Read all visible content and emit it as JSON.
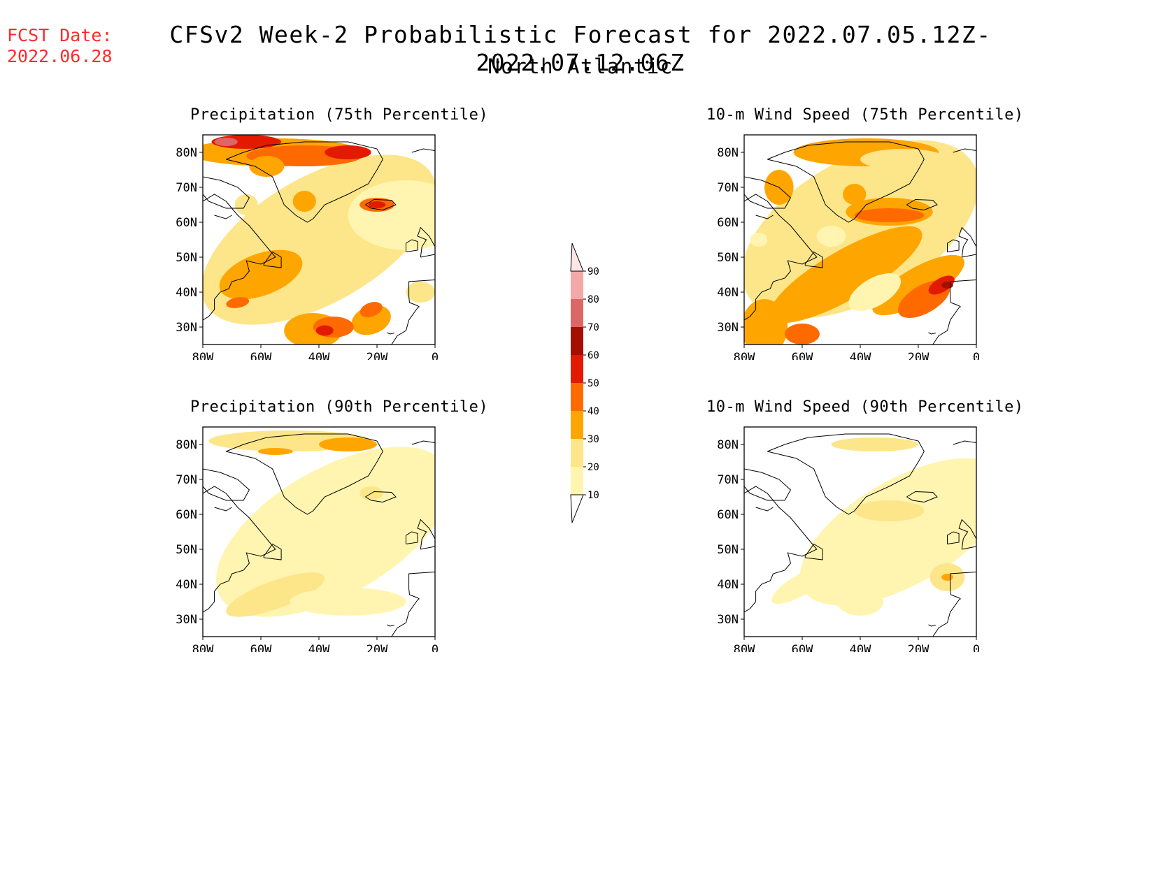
{
  "header": {
    "fcst_label": "FCST Date:",
    "fcst_date": "2022.06.28",
    "title": "CFSv2 Week-2 Probabilistic Forecast for 2022.07.05.12Z-2022.07.12.06Z",
    "subtitle": "North Atlantic"
  },
  "axes": {
    "lat_ticks": [
      "80N",
      "70N",
      "60N",
      "50N",
      "40N",
      "30N"
    ],
    "lon_ticks": [
      "80W",
      "60W",
      "40W",
      "20W",
      "0"
    ]
  },
  "panels": [
    {
      "title": "Precipitation (75th Percentile)",
      "intensity": "high"
    },
    {
      "title": "10-m Wind Speed (75th Percentile)",
      "intensity": "high"
    },
    {
      "title": "Precipitation (90th Percentile)",
      "intensity": "low"
    },
    {
      "title": "10-m Wind Speed (90th Percentile)",
      "intensity": "low"
    }
  ],
  "colorbar": {
    "levels": [
      "10",
      "20",
      "30",
      "40",
      "50",
      "60",
      "70",
      "80",
      "90"
    ],
    "colors": [
      "#fff5b0",
      "#fde68a",
      "#ffa500",
      "#ff6a00",
      "#e21a00",
      "#a50f00",
      "#dc6767",
      "#f4a8a8",
      "#ffe6e6"
    ]
  }
}
